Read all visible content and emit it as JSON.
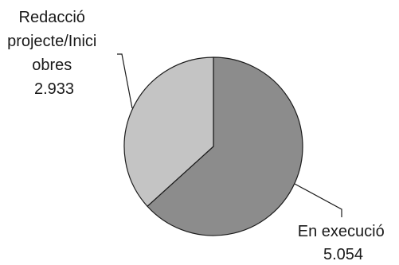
{
  "chart_data": {
    "type": "pie",
    "title": "",
    "slices": [
      {
        "label_lines": [
          "En execució",
          "5.054"
        ],
        "value": 5054,
        "color": "#8c8c8c"
      },
      {
        "label_lines": [
          "Redacció",
          "projecte/Inici",
          "obres",
          "2.933"
        ],
        "value": 2933,
        "color": "#c4c4c4"
      }
    ],
    "start": "12 o'clock",
    "direction": "clockwise",
    "outline_color": "#1a1a1a"
  }
}
